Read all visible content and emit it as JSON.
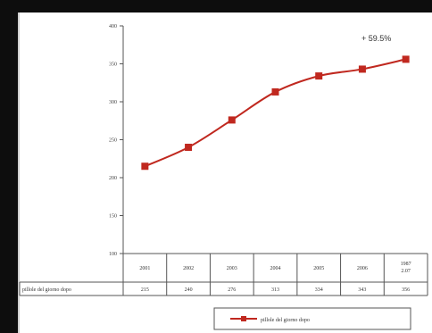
{
  "chart_data": {
    "type": "line",
    "categories": [
      "2001",
      "2002",
      "2003",
      "2004",
      "2005",
      "2006",
      "1987\n2.07"
    ],
    "series": [
      {
        "name": "pillole del giorno dopo",
        "values": [
          215,
          240,
          276,
          313,
          334,
          343,
          356
        ]
      }
    ],
    "ylim": [
      100,
      400
    ],
    "yticks": [
      100,
      150,
      200,
      250,
      300,
      350,
      400
    ],
    "ytick_labels": [
      "100",
      "150",
      "200",
      "250",
      "300",
      "350",
      "400"
    ],
    "annotation": "+ 59.5%",
    "table": {
      "row_label": "pillole del giorno dopo",
      "values": [
        "215",
        "240",
        "276",
        "313",
        "334",
        "343",
        "356"
      ]
    },
    "legend": "pillole del giorno dopo",
    "legend_position": "bottom",
    "grid": false,
    "colors": {
      "series": "#c0281f",
      "background": "#0d0d0d",
      "panel": "#ffffff"
    }
  }
}
